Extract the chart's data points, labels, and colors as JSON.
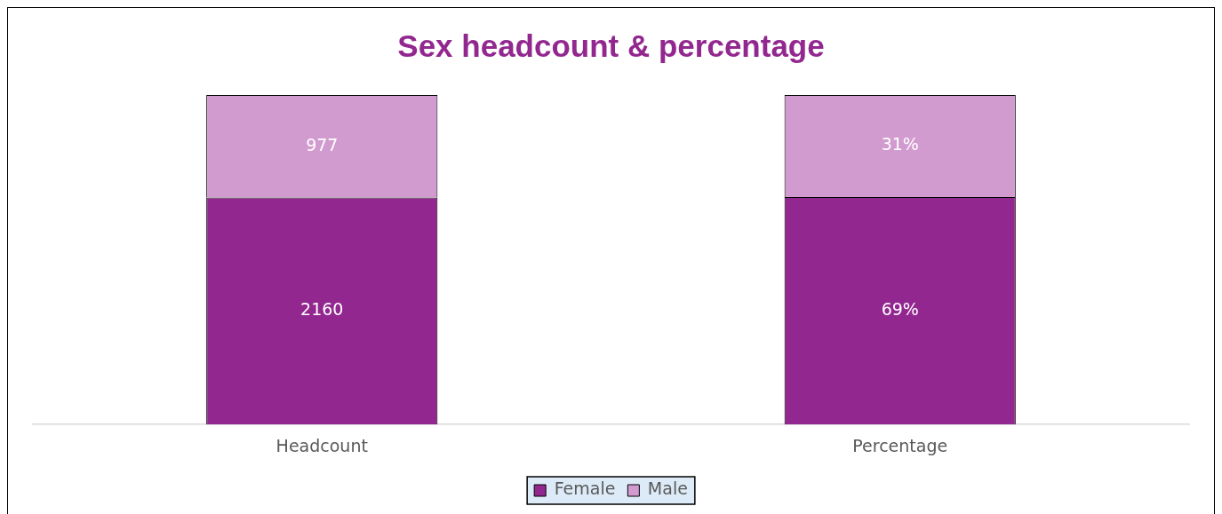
{
  "chart_data": {
    "type": "bar",
    "title": "Sex headcount & percentage",
    "categories": [
      "Headcount",
      "Percentage"
    ],
    "stacked": true,
    "legend": "bottom",
    "grid": false,
    "tick_labels": "x",
    "ylim": [
      0,
      3137
    ],
    "y2lim": [
      0,
      100
    ],
    "series": [
      {
        "name": "Female",
        "color": "#92278f",
        "values": [
          2160,
          null
        ],
        "value_labels": [
          "2160",
          null
        ]
      },
      {
        "name": "Male",
        "color": "#d29bcf",
        "values": [
          977,
          null
        ],
        "value_labels": [
          "977",
          null
        ]
      },
      {
        "color": "#92278f",
        "axis": "y2",
        "values": [
          null,
          69
        ],
        "value_labels": [
          null,
          "69%"
        ]
      },
      {
        "color": "#d29bcf",
        "axis": "y2",
        "values": [
          null,
          31
        ],
        "value_labels": [
          null,
          "31%"
        ]
      }
    ]
  }
}
